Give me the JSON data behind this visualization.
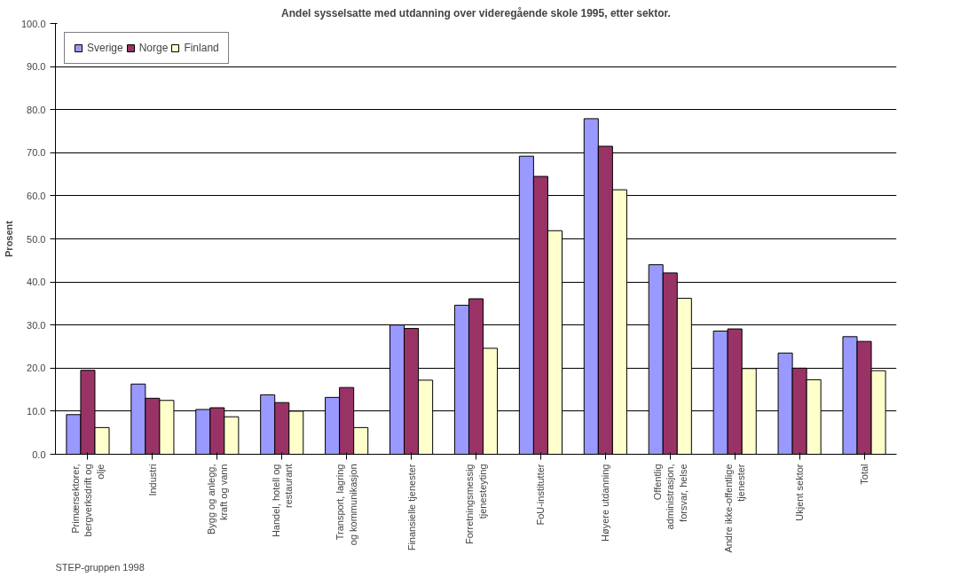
{
  "chart_data": {
    "type": "bar",
    "title": "Andel sysselsatte med utdanning over videregående skole 1995, etter sektor.",
    "ylabel": "Prosent",
    "categories": [
      "Primærsektorer,\nbergverksdrift og\nolje",
      "Industri",
      "Bygg og anlegg,\nkraft og vann",
      "Handel, hotell og\nrestaurant",
      "Transport, lagring\nog kommunikasjon",
      "Finansielle tjenester",
      "Forretningsmessig\ntjenesteyting",
      "FoU-institutter",
      "Høyere utdanning",
      "Offentlig\nadministrasjon,\nforsvar, helse",
      "Andre ikke-offentlige\ntjenester",
      "Ukjent sektor",
      "Total"
    ],
    "series": [
      {
        "name": "Sverige",
        "color": "#9999ff",
        "values": [
          9.2,
          16.3,
          10.4,
          13.8,
          13.2,
          30.0,
          34.6,
          69.2,
          77.9,
          44.0,
          28.6,
          23.5,
          27.3
        ]
      },
      {
        "name": "Norge",
        "color": "#993366",
        "values": [
          19.5,
          13.0,
          10.8,
          12.0,
          15.5,
          29.2,
          36.1,
          64.5,
          71.5,
          42.1,
          29.1,
          20.0,
          26.2
        ]
      },
      {
        "name": "Finland",
        "color": "#ffffcc",
        "values": [
          6.2,
          12.5,
          8.7,
          10.0,
          6.2,
          17.2,
          24.6,
          51.9,
          61.4,
          36.2,
          19.9,
          17.3,
          19.4
        ]
      }
    ],
    "ylim": [
      0,
      100
    ],
    "yticks": [
      {
        "value": 0,
        "label": "0.0"
      },
      {
        "value": 10,
        "label": "10.0"
      },
      {
        "value": 20,
        "label": "20.0"
      },
      {
        "value": 30,
        "label": "30.0"
      },
      {
        "value": 40,
        "label": "40.0"
      },
      {
        "value": 50,
        "label": "50.0"
      },
      {
        "value": 60,
        "label": "60.0"
      },
      {
        "value": 70,
        "label": "70.0"
      },
      {
        "value": 80,
        "label": "80.0"
      },
      {
        "value": 90,
        "label": "90.0"
      },
      {
        "value": 100,
        "label": "100.0"
      }
    ],
    "grid": "y",
    "legend": "top left",
    "annotations": [
      "STEP-gruppen 1998"
    ]
  }
}
